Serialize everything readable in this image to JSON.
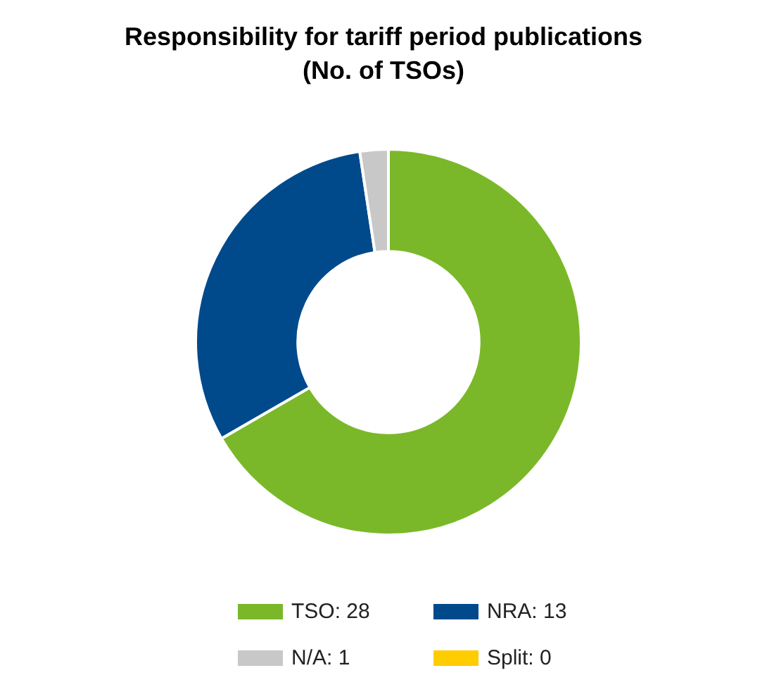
{
  "chart_data": {
    "type": "donut",
    "title": "Responsibility for tariff period publications",
    "subtitle": "(No. of TSOs)",
    "categories": [
      "TSO: 28",
      "NRA: 13",
      "N/A: 1",
      "Split: 0"
    ],
    "values": [
      28,
      13,
      1,
      0
    ],
    "colors": [
      "#7ab829",
      "#004a8c",
      "#c8c8c8",
      "#ffcc00"
    ],
    "legend": "bottom"
  }
}
